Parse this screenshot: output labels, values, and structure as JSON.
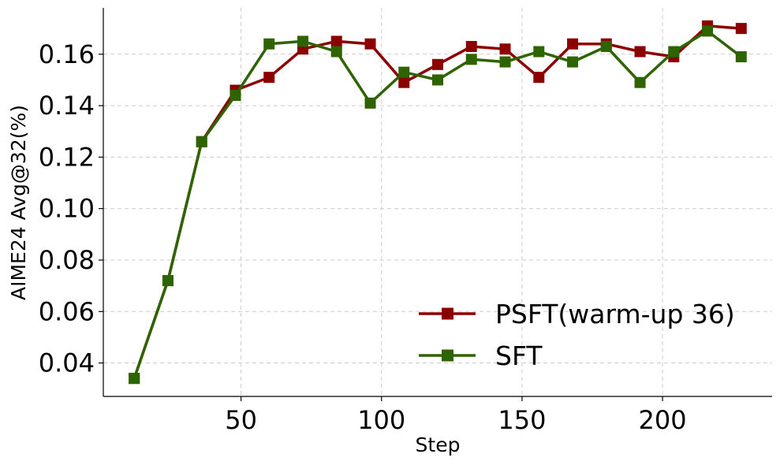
{
  "chart_data": {
    "type": "line",
    "xlabel": "Step",
    "ylabel": "AIME24 Avg@32(%)",
    "xlim": [
      1,
      239
    ],
    "ylim": [
      0.027,
      0.178
    ],
    "xticks": [
      50,
      100,
      150,
      200
    ],
    "yticks": [
      0.04,
      0.06,
      0.08,
      0.1,
      0.12,
      0.14,
      0.16
    ],
    "ytick_labels": [
      "0.04",
      "0.06",
      "0.08",
      "0.10",
      "0.12",
      "0.14",
      "0.16"
    ],
    "grid": true,
    "legend_position": "lower-right",
    "series": [
      {
        "name": "PSFT(warm-up 36)",
        "color": "#8b0000",
        "marker": "square",
        "x": [
          12,
          24,
          36,
          48,
          60,
          72,
          84,
          96,
          108,
          120,
          132,
          144,
          156,
          168,
          180,
          192,
          204,
          216,
          228
        ],
        "y": [
          0.034,
          0.072,
          0.126,
          0.146,
          0.151,
          0.162,
          0.165,
          0.164,
          0.149,
          0.156,
          0.163,
          0.162,
          0.151,
          0.164,
          0.164,
          0.161,
          0.159,
          0.171,
          0.17
        ]
      },
      {
        "name": "SFT",
        "color": "#2e6400",
        "marker": "square",
        "x": [
          12,
          24,
          36,
          48,
          60,
          72,
          84,
          96,
          108,
          120,
          132,
          144,
          156,
          168,
          180,
          192,
          204,
          216,
          228
        ],
        "y": [
          0.034,
          0.072,
          0.126,
          0.144,
          0.164,
          0.165,
          0.161,
          0.141,
          0.153,
          0.15,
          0.158,
          0.157,
          0.161,
          0.157,
          0.163,
          0.149,
          0.161,
          0.169,
          0.159
        ]
      }
    ]
  }
}
